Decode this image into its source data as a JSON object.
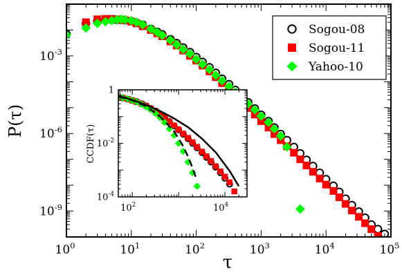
{
  "colors": {
    "sogou08": "#000000",
    "sogou11": "#ff0000",
    "yahoo10": "#00ff00",
    "frame": "#000000",
    "background": "#ffffff"
  },
  "chart_data": [
    {
      "type": "scatter",
      "scale": {
        "x": "log",
        "y": "log"
      },
      "xlabel": "τ",
      "ylabel": "P(τ)",
      "xlim": [
        1,
        100000
      ],
      "ylim": [
        1e-10,
        0.1
      ],
      "x_ticks": [
        {
          "value": 1,
          "base": "10",
          "exp": "0"
        },
        {
          "value": 10,
          "base": "10",
          "exp": "1"
        },
        {
          "value": 100,
          "base": "10",
          "exp": "2"
        },
        {
          "value": 1000,
          "base": "10",
          "exp": "3"
        },
        {
          "value": 10000,
          "base": "10",
          "exp": "4"
        },
        {
          "value": 100000,
          "base": "10",
          "exp": "5"
        }
      ],
      "y_ticks": [
        {
          "value": 0.001,
          "base": "10",
          "exp": "-3"
        },
        {
          "value": 1e-06,
          "base": "10",
          "exp": "-6"
        },
        {
          "value": 1e-09,
          "base": "10",
          "exp": "-9"
        }
      ],
      "legend": {
        "placement": "top-right"
      },
      "series": [
        {
          "name": "Sogou-08",
          "marker": "open-circle",
          "color": "#000000",
          "x": [
            1,
            2,
            3,
            4,
            5,
            6,
            7,
            8,
            10,
            12,
            15,
            20,
            25,
            30,
            40,
            50,
            63,
            80,
            100,
            125,
            160,
            200,
            250,
            320,
            400,
            500,
            630,
            800,
            1000,
            1300,
            1600,
            2000,
            2500,
            3200,
            4000,
            5000,
            6300,
            8000,
            10000,
            13000,
            16000,
            20000,
            25000,
            32000,
            40000,
            50000,
            63000,
            80000
          ],
          "y": [
            0.007,
            0.018,
            0.022,
            0.024,
            0.025,
            0.025,
            0.025,
            0.024,
            0.022,
            0.019,
            0.016,
            0.011,
            0.0085,
            0.0068,
            0.0044,
            0.0031,
            0.0021,
            0.0014,
            0.0009,
            0.00058,
            0.00036,
            0.00022,
            0.00013,
            8e-05,
            4.8e-05,
            2.8e-05,
            1.6e-05,
            9.2e-06,
            5.3e-06,
            3e-06,
            1.7e-06,
            9.5e-07,
            5.5e-07,
            3e-07,
            1.7e-07,
            9.5e-08,
            5.5e-08,
            3e-08,
            1.7e-08,
            9.5e-09,
            5.5e-09,
            3e-09,
            1.7e-09,
            9.5e-10,
            5.5e-10,
            3e-10,
            2e-10,
            1.3e-10
          ]
        },
        {
          "name": "Sogou-11",
          "marker": "filled-square",
          "color": "#ff0000",
          "x": [
            2,
            3,
            4,
            5,
            6,
            7,
            8,
            10,
            12,
            15,
            20,
            25,
            30,
            40,
            50,
            63,
            80,
            100,
            125,
            160,
            200,
            250,
            320,
            400,
            500,
            630,
            800,
            1000,
            1300,
            1600,
            2000,
            2500,
            3200,
            4000,
            5000,
            6300,
            8000,
            10000,
            13000,
            16000,
            20000,
            25000,
            32000,
            40000,
            50000,
            63000
          ],
          "y": [
            0.02,
            0.026,
            0.027,
            0.027,
            0.026,
            0.025,
            0.024,
            0.021,
            0.018,
            0.014,
            0.01,
            0.0074,
            0.0057,
            0.0036,
            0.0025,
            0.0016,
            0.001,
            0.00066,
            0.00042,
            0.00025,
            0.00015,
            8.8e-05,
            5.2e-05,
            3e-05,
            1.7e-05,
            9.6e-06,
            5.4e-06,
            3e-06,
            1.7e-06,
            9.5e-07,
            5.5e-07,
            3.2e-07,
            1.8e-07,
            1e-07,
            5.8e-08,
            3.3e-08,
            1.8e-08,
            1.05e-08,
            6e-09,
            3.4e-09,
            1.9e-09,
            1.05e-09,
            6e-10,
            3.4e-10,
            2e-10,
            1.1e-10
          ]
        },
        {
          "name": "Yahoo-10",
          "marker": "filled-diamond",
          "color": "#00ff00",
          "x": [
            1,
            2,
            3,
            4,
            5,
            6,
            7,
            8,
            10,
            12,
            15,
            20,
            25,
            30,
            40,
            50,
            63,
            80,
            100,
            125,
            160,
            200,
            250,
            320,
            400,
            500,
            630,
            800,
            1000,
            1300,
            1600,
            2000,
            2500,
            4000
          ],
          "y": [
            0.0065,
            0.012,
            0.018,
            0.021,
            0.023,
            0.025,
            0.026,
            0.025,
            0.023,
            0.02,
            0.016,
            0.011,
            0.0082,
            0.0062,
            0.0041,
            0.0027,
            0.0018,
            0.0012,
            0.00075,
            0.00048,
            0.0003,
            0.00018,
            0.00011,
            6.6e-05,
            4e-05,
            2.4e-05,
            1.4e-05,
            8.2e-06,
            4.7e-06,
            2.7e-06,
            1.5e-06,
            8e-07,
            3e-07,
            1.2e-09
          ]
        }
      ]
    },
    {
      "type": "scatter",
      "inset": true,
      "scale": {
        "x": "log",
        "y": "log"
      },
      "ylabel": "CCDF(τ)",
      "xlim": [
        50,
        30000
      ],
      "ylim": [
        0.0001,
        1
      ],
      "x_ticks": [
        {
          "value": 100,
          "base": "10",
          "exp": "2"
        },
        {
          "value": 10000,
          "base": "10",
          "exp": "4"
        }
      ],
      "y_ticks": [
        {
          "value": 1,
          "base": "1",
          "exp": "0"
        },
        {
          "value": 0.01,
          "base": "10",
          "exp": "-2"
        },
        {
          "value": 0.0001,
          "base": "10",
          "exp": "-4"
        }
      ],
      "series": [
        {
          "name": "Sogou-08",
          "marker": "open-circle",
          "color": "#000000",
          "x": [
            50,
            63,
            80,
            100,
            125,
            160,
            200,
            250,
            320,
            400,
            500,
            630,
            800,
            1000,
            1260,
            1600,
            2000,
            2500,
            3200,
            4000,
            5000,
            6300,
            8000,
            10000,
            12600
          ],
          "y": [
            0.55,
            0.5,
            0.45,
            0.4,
            0.36,
            0.3,
            0.25,
            0.2,
            0.16,
            0.12,
            0.09,
            0.065,
            0.045,
            0.032,
            0.022,
            0.015,
            0.01,
            0.0068,
            0.0045,
            0.003,
            0.002,
            0.0013,
            0.0008,
            0.0005,
            0.0003
          ]
        },
        {
          "name": "Sogou-11",
          "marker": "filled-square",
          "color": "#ff0000",
          "x": [
            63,
            80,
            100,
            125,
            160,
            200,
            250,
            320,
            400,
            500,
            630,
            800,
            1000,
            1260,
            1600,
            2000,
            2500,
            3200,
            4000,
            5000,
            6300,
            8000,
            10000,
            12600,
            16000
          ],
          "y": [
            0.5,
            0.45,
            0.4,
            0.35,
            0.3,
            0.25,
            0.2,
            0.16,
            0.12,
            0.09,
            0.065,
            0.046,
            0.033,
            0.023,
            0.016,
            0.011,
            0.0074,
            0.0049,
            0.0033,
            0.0022,
            0.0014,
            0.0009,
            0.00057,
            0.00035,
            0.00016
          ]
        },
        {
          "name": "Yahoo-10",
          "marker": "filled-diamond",
          "color": "#00ff00",
          "x": [
            50,
            63,
            80,
            100,
            125,
            160,
            200,
            250,
            320,
            400,
            500,
            630,
            800,
            1000,
            1260,
            1600,
            2000,
            2500
          ],
          "y": [
            0.55,
            0.5,
            0.46,
            0.4,
            0.35,
            0.29,
            0.23,
            0.18,
            0.13,
            0.09,
            0.06,
            0.035,
            0.02,
            0.01,
            0.005,
            0.002,
            0.0008,
            0.00025
          ]
        }
      ],
      "fit_lines": [
        {
          "style": "solid",
          "color": "#000000",
          "x": [
            50,
            100,
            200,
            400,
            800,
            1600,
            3200,
            6400,
            12800,
            20000
          ],
          "y": [
            0.6,
            0.42,
            0.27,
            0.16,
            0.085,
            0.04,
            0.015,
            0.0045,
            0.0009,
            0.00025
          ]
        },
        {
          "style": "dashed",
          "color": "#000000",
          "x": [
            50,
            100,
            200,
            400,
            800,
            1200,
            1600,
            2000,
            2500
          ],
          "y": [
            0.55,
            0.4,
            0.24,
            0.1,
            0.028,
            0.009,
            0.0032,
            0.0012,
            0.0004
          ]
        }
      ]
    }
  ]
}
